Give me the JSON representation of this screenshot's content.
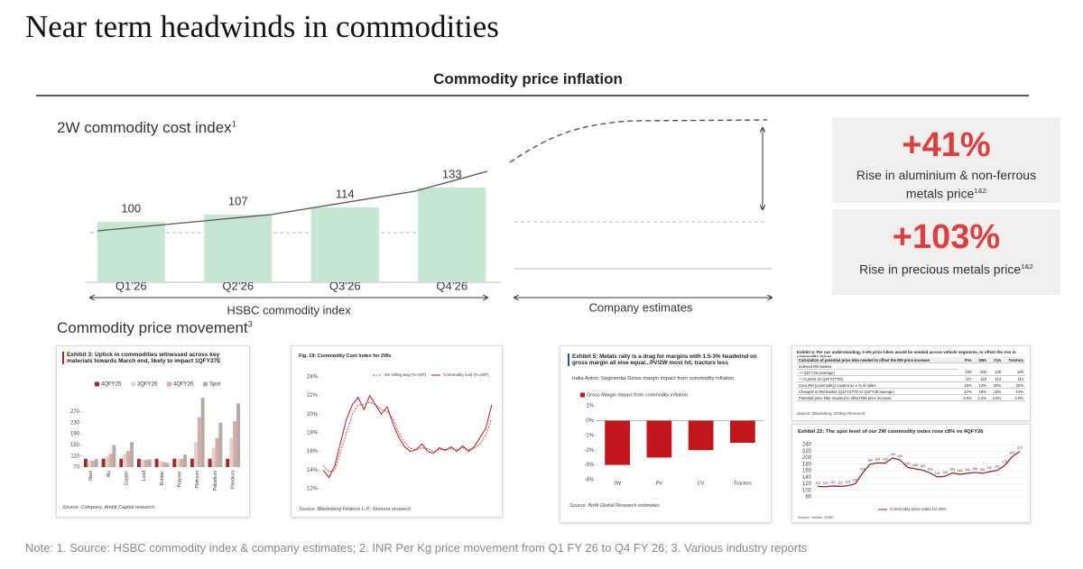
{
  "title": "Near term headwinds in commodities",
  "section_title": "Commodity price inflation",
  "chart_data": [
    {
      "type": "bar",
      "title": "2W commodity cost index",
      "title_note": "1",
      "categories": [
        "Q1’26",
        "Q2’26",
        "Q3’26",
        "Q4’26"
      ],
      "values": [
        100,
        107,
        114,
        133
      ],
      "color": "#c6e6d2",
      "ylim": [
        42,
        192
      ],
      "data_labels": true,
      "x_label": "HSBC commodity index",
      "estimate_label": "Company estimates"
    },
    {
      "type": "bar",
      "title": "Exhibit 3: Uptick in commodities witnessed across key materials towards March end, likely to impact 1QFY27E",
      "categories": [
        "Steel",
        "Alu",
        "Copper",
        "Lead",
        "Rubber",
        "Polymer",
        "Platinum",
        "Palladium",
        "Rhodium"
      ],
      "series": [
        {
          "name": "4QFY25",
          "color": "#9e2a2b",
          "values": [
            100,
            100,
            100,
            100,
            100,
            100,
            100,
            100,
            100
          ]
        },
        {
          "name": "3QFY26",
          "color": "#e0d4d0",
          "values": [
            95,
            108,
            118,
            97,
            92,
            98,
            160,
            140,
            175
          ]
        },
        {
          "name": "4QFY26",
          "color": "#d8a9a5",
          "values": [
            93,
            118,
            128,
            96,
            88,
            100,
            250,
            175,
            235
          ]
        },
        {
          "name": "Spot",
          "color": "#b5aca9",
          "values": [
            100,
            150,
            160,
            98,
            85,
            115,
            320,
            230,
            300
          ]
        }
      ],
      "ylim": [
        70,
        330
      ],
      "yticks": [
        70,
        110,
        150,
        190,
        230,
        270
      ],
      "grid": false,
      "source": "Source: Company, Ambit Capital research"
    },
    {
      "type": "line",
      "title": "Fig. 19: Commodity Cost Index for 2Ws",
      "series": [
        {
          "name": "3m rolling avg (% ASP)",
          "color": "#e0403a",
          "dash": true,
          "values": [
            14.5,
            13.8,
            14,
            16,
            18,
            20,
            21,
            21,
            21.3,
            21,
            20.5,
            20.3,
            19.5,
            18,
            17,
            16.3,
            16.2,
            16.4,
            16.3,
            16,
            16.2,
            16.2,
            16.3,
            16.2,
            16.4,
            16.2,
            16.3,
            16.8,
            17.8,
            19.5
          ]
        },
        {
          "name": "Commodity cost (% ASP)",
          "color": "#b01c22",
          "dash": false,
          "values": [
            14,
            13.2,
            14.5,
            17,
            19.5,
            21,
            21.8,
            20.5,
            22,
            21,
            20,
            20.8,
            19,
            17.5,
            16.5,
            16,
            16.2,
            16.8,
            16,
            15.8,
            16.4,
            16.1,
            16.5,
            16,
            16.6,
            16,
            16.5,
            17.5,
            18.5,
            21
          ]
        }
      ],
      "ylim": [
        12,
        24
      ],
      "yticks": [
        {
          "value": 12,
          "label": "12%"
        },
        {
          "value": 14,
          "label": "14%"
        },
        {
          "value": 16,
          "label": "16%"
        },
        {
          "value": 18,
          "label": "18%"
        },
        {
          "value": 20,
          "label": "20%"
        },
        {
          "value": 22,
          "label": "22%"
        },
        {
          "value": 24,
          "label": "24%"
        }
      ],
      "grid": false,
      "source": "Source: Bloomberg Finance L.P., Nomura research"
    },
    {
      "type": "bar",
      "title": "Exhibit 5: Metals rally is a drag for margins with 1.5-3% headwind on gross margin all else equal...PV/2W most hit, tractors less",
      "subtitle": "India Autos: Segmental Gross margin impact from commodity inflation",
      "categories": [
        "2W",
        "PV",
        "CV",
        "Tractors"
      ],
      "series": [
        {
          "name": "Gross Margin impact from commodity inflation",
          "color": "#c0161c",
          "values": [
            -3,
            -2.5,
            -2,
            -1.5
          ]
        }
      ],
      "ylim": [
        -4,
        1
      ],
      "yticks": [
        {
          "value": 1,
          "label": "1%"
        },
        {
          "value": 0,
          "label": "0%"
        },
        {
          "value": -1,
          "label": "-1%"
        },
        {
          "value": -2,
          "label": "-2%"
        },
        {
          "value": -3,
          "label": "-3%"
        },
        {
          "value": -4,
          "label": "-4%"
        }
      ],
      "grid": false,
      "source": "Source: BofA Global Research estimates"
    },
    {
      "type": "line",
      "title": "Exhibit 22: The spot level of our 2W commodity index rose c8% vs 4QFY26",
      "series": [
        {
          "name": "Commodity price index for 2Ws",
          "color": "#8b1a1a",
          "dash": false,
          "values": [
            112,
            111,
            113,
            112,
            114,
            120,
            153,
            180,
            184,
            183,
            199,
            193,
            170,
            166,
            162,
            153,
            141,
            143,
            153,
            149,
            152,
            155,
            152,
            157,
            161,
            176,
            203,
            219
          ]
        }
      ],
      "ylim": [
        80,
        240
      ],
      "yticks": [
        80,
        100,
        120,
        140,
        160,
        180,
        200,
        220,
        240
      ],
      "grid": true,
      "data_labels": true,
      "source": "Source: Valuex, HSBC"
    }
  ],
  "table": {
    "title": "Exhibit 4: Per our understanding, 2-4% price hikes would be needed across vehicle segments, to offset the rise in commodity prices",
    "header": [
      "Calculation of potential price hike needed to offset the RM price increase",
      "PVs",
      "2Ws",
      "CVs",
      "Tractors"
    ],
    "rows": [
      [
        "Indexed RM basket"
      ],
      [
        "— Q1FY26 (average)",
        "100",
        "100",
        "100",
        "100"
      ],
      [
        "— Current (in Q1FY27TD)",
        "117",
        "118",
        "113",
        "114"
      ],
      [
        "Core RM (commodity) content as a % of sales",
        "15%",
        "13%",
        "20%",
        "20%"
      ],
      [
        "Changes in RM basket (Q1FY27TD vs Q1FY26 average)",
        "17%",
        "18%",
        "13%",
        "14%"
      ],
      [
        "Potential price hike required to offset RM price increase",
        "2.5%",
        "2.3%",
        "2.5%",
        "2.8%"
      ]
    ],
    "source": "Source: Bloomberg, Emkay Research"
  },
  "section2_title": "Commodity price movement",
  "section2_note": "3",
  "callouts": [
    {
      "value": "+41%",
      "text": "Rise in aluminium & non-ferrous metals price",
      "note": "1&2"
    },
    {
      "value": "+103%",
      "text": "Rise in precious metals price",
      "note": "1&2"
    }
  ],
  "note": "Note: 1. Source: HSBC commodity index & company estimates; 2. INR Per Kg price movement from Q1 FY 26 to Q4 FY 26; 3. Various industry reports"
}
